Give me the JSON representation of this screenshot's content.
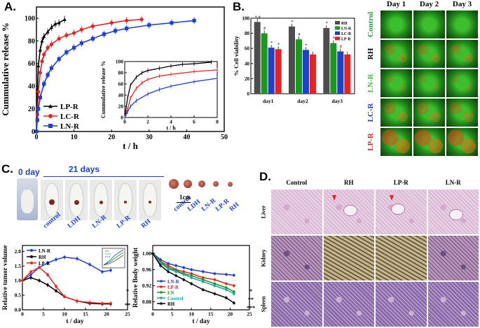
{
  "panel_labels": {
    "a": "A.",
    "b": "B.",
    "c": "C.",
    "d": "D."
  },
  "chart_data": [
    {
      "id": "A-main",
      "type": "line",
      "xlabel": "t / h",
      "ylabel": "Cummulative release %",
      "xlim": [
        0,
        50
      ],
      "ylim": [
        0,
        110
      ],
      "xticks": [
        0,
        10,
        20,
        30,
        40,
        50
      ],
      "yticks": [
        0,
        20,
        40,
        60,
        80,
        100
      ],
      "legend": "bottom-left",
      "series": [
        {
          "name": "LP-R",
          "color": "#000000",
          "marker": "triangle",
          "x": [
            0,
            0.25,
            0.5,
            1,
            1.5,
            2,
            3,
            4,
            5,
            6,
            7.5
          ],
          "y": [
            0,
            35,
            58,
            72,
            80,
            84,
            88,
            92,
            95,
            96,
            99
          ]
        },
        {
          "name": "LC-R",
          "color": "#e8231f",
          "marker": "circle",
          "x": [
            0,
            0.25,
            0.5,
            1,
            1.5,
            2,
            3,
            4,
            6,
            8,
            10,
            12,
            15,
            20,
            24,
            28
          ],
          "y": [
            0,
            15,
            35,
            52,
            62,
            68,
            74,
            77,
            82,
            85,
            87,
            90,
            93,
            96,
            98,
            99
          ]
        },
        {
          "name": "LN-R",
          "color": "#1e3fd0",
          "marker": "square",
          "x": [
            0,
            0.25,
            0.5,
            1,
            2,
            3,
            4,
            6,
            8,
            10,
            12,
            15,
            18,
            21,
            24,
            30,
            36,
            42
          ],
          "y": [
            0,
            10,
            20,
            30,
            42,
            50,
            56,
            64,
            70,
            74,
            78,
            82,
            86,
            89,
            91,
            94,
            96,
            98
          ]
        }
      ]
    },
    {
      "id": "A-inset",
      "type": "line",
      "xlabel": "t / h",
      "ylabel": "Cummulative release %",
      "xlim": [
        0,
        8
      ],
      "ylim": [
        0,
        100
      ],
      "xticks": [
        0,
        2,
        4,
        6,
        8
      ],
      "yticks": [
        0,
        20,
        40,
        60,
        80,
        100
      ],
      "series": [
        {
          "color": "#000000",
          "x": [
            0,
            0.25,
            0.5,
            1,
            1.5,
            2,
            3,
            4,
            5,
            6,
            7.5
          ],
          "y": [
            0,
            35,
            58,
            72,
            80,
            84,
            88,
            92,
            95,
            96,
            99
          ]
        },
        {
          "color": "#e8231f",
          "x": [
            0,
            0.25,
            0.5,
            1,
            1.5,
            2,
            3,
            4,
            6,
            8
          ],
          "y": [
            0,
            15,
            35,
            52,
            62,
            68,
            74,
            77,
            82,
            85
          ]
        },
        {
          "color": "#1e3fd0",
          "x": [
            0,
            0.25,
            0.5,
            1,
            2,
            3,
            4,
            6,
            8
          ],
          "y": [
            0,
            10,
            20,
            30,
            42,
            50,
            56,
            64,
            70
          ]
        }
      ]
    },
    {
      "id": "B",
      "type": "bar",
      "ylabel": "% Cell viability",
      "categories": [
        "day1",
        "day2",
        "day3"
      ],
      "ylim": [
        0,
        100
      ],
      "yticks": [
        0,
        20,
        40,
        60,
        80,
        100
      ],
      "legend": "top-right",
      "series": [
        {
          "name": "RH",
          "color": "#4d4d4d",
          "values": [
            95,
            89,
            87
          ]
        },
        {
          "name": "LN-R",
          "color": "#1a9a1a",
          "values": [
            80,
            72,
            67
          ]
        },
        {
          "name": "LC-R",
          "color": "#1e3fd0",
          "values": [
            61,
            58,
            56
          ]
        },
        {
          "name": "LP-R",
          "color": "#e8231f",
          "values": [
            59,
            52,
            52
          ]
        }
      ],
      "annotations": [
        [
          "*,#",
          "#",
          "*",
          "*"
        ],
        [
          "*",
          "#",
          "*",
          ""
        ],
        [
          "*",
          "*",
          "#",
          ""
        ]
      ]
    },
    {
      "id": "C-left",
      "type": "line",
      "xlabel": "t / day",
      "ylabel": "Relative tumor volume",
      "xlim": [
        0,
        25
      ],
      "ylim": [
        0,
        2.2
      ],
      "xticks": [
        0,
        5,
        10,
        15,
        20,
        25
      ],
      "yticks": [
        0.0,
        0.5,
        1.0,
        1.5,
        2.0
      ],
      "legend": "top-left",
      "series": [
        {
          "name": "LN-R",
          "color": "#1e3fd0",
          "x": [
            0,
            2,
            4,
            6,
            8,
            10,
            13,
            16,
            19,
            21
          ],
          "y": [
            1.0,
            1.2,
            1.45,
            1.6,
            1.72,
            1.8,
            1.75,
            1.55,
            1.3,
            1.35
          ]
        },
        {
          "name": "RH",
          "color": "#000000",
          "x": [
            0,
            2,
            4,
            6,
            8,
            10,
            13,
            16,
            19,
            21
          ],
          "y": [
            1.0,
            1.1,
            1.0,
            0.85,
            0.65,
            0.45,
            0.3,
            0.22,
            0.2,
            0.2
          ]
        },
        {
          "name": "LP-R",
          "color": "#e8231f",
          "x": [
            0,
            2,
            4,
            6,
            8,
            10,
            13,
            16,
            19,
            21
          ],
          "y": [
            1.0,
            1.3,
            1.45,
            1.2,
            0.8,
            0.45,
            0.3,
            0.25,
            0.22,
            0.22
          ]
        }
      ],
      "inset": {
        "legend": [
          "RH",
          "LN-R",
          "LP-R"
        ],
        "colors": [
          "#4d4d4d",
          "#1a9a1a",
          "#1e3fd0"
        ]
      },
      "annotations": [
        "*",
        "**"
      ]
    },
    {
      "id": "C-right",
      "type": "line",
      "xlabel": "t / day",
      "ylabel": "Relative Body weight",
      "xlim": [
        0,
        25
      ],
      "ylim": [
        0.86,
        1.02
      ],
      "xticks": [
        0,
        5,
        10,
        15,
        20,
        25
      ],
      "yticks": [
        0.88,
        0.92,
        0.96,
        1.0
      ],
      "legend": "bottom-left",
      "series": [
        {
          "name": "LN-R",
          "color": "#1e3fd0",
          "x": [
            0,
            2,
            4,
            6,
            8,
            10,
            13,
            16,
            19,
            21
          ],
          "y": [
            1.0,
            0.985,
            0.975,
            0.97,
            0.965,
            0.96,
            0.955,
            0.95,
            0.948,
            0.946
          ]
        },
        {
          "name": "LP-R",
          "color": "#e8231f",
          "x": [
            0,
            2,
            4,
            6,
            8,
            10,
            13,
            16,
            19,
            21
          ],
          "y": [
            1.0,
            0.98,
            0.97,
            0.96,
            0.955,
            0.95,
            0.94,
            0.935,
            0.925,
            0.92
          ]
        },
        {
          "name": "LN",
          "color": "#1a9a1a",
          "x": [
            0,
            2,
            4,
            6,
            8,
            10,
            13,
            16,
            19,
            21
          ],
          "y": [
            1.0,
            0.978,
            0.965,
            0.958,
            0.95,
            0.945,
            0.935,
            0.925,
            0.915,
            0.905
          ]
        },
        {
          "name": "Control",
          "color": "#18a8a8",
          "x": [
            0,
            2,
            4,
            6,
            8,
            10,
            13,
            16,
            19,
            21
          ],
          "y": [
            1.0,
            0.976,
            0.962,
            0.955,
            0.948,
            0.94,
            0.93,
            0.92,
            0.91,
            0.9
          ]
        },
        {
          "name": "RH",
          "color": "#000000",
          "x": [
            0,
            2,
            4,
            6,
            8,
            10,
            13,
            16,
            19,
            21
          ],
          "y": [
            1.0,
            0.97,
            0.955,
            0.945,
            0.935,
            0.925,
            0.91,
            0.9,
            0.89,
            0.877
          ]
        }
      ],
      "annotations": [
        "*",
        "**",
        "***"
      ]
    }
  ],
  "micrograph_b": {
    "col_headers": [
      "Day  1",
      "Day 2",
      "Day 3"
    ],
    "row_labels": [
      {
        "text": "Control",
        "color": "#1aa34a"
      },
      {
        "text": "RH",
        "color": "#000000"
      },
      {
        "text": "LN-R",
        "color": "#39c339"
      },
      {
        "text": "LC-R",
        "color": "#1e3fd0"
      },
      {
        "text": "LP-R",
        "color": "#e8231f"
      }
    ]
  },
  "panel_c_photos": {
    "day0": "0 day",
    "day21": "21 days",
    "mouse_labels": [
      "control",
      "LDH",
      "LN-R",
      "LP-R",
      "RH"
    ],
    "scale": "1cm",
    "tumor_labels": [
      "control",
      "LDH",
      "LN-R",
      "LP-R",
      "RH"
    ]
  },
  "histology_d": {
    "col_headers": [
      "Control",
      "RH",
      "LP-R",
      "LN-R"
    ],
    "row_labels": [
      "Liver",
      "Kidney",
      "Spleen"
    ]
  }
}
